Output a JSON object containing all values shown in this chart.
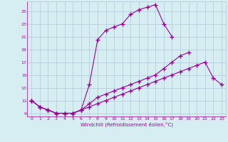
{
  "xlabel": "Windchill (Refroidissement éolien,°C)",
  "bg_color": "#d6eef2",
  "line_color": "#990099",
  "grid_color": "#b0c8d8",
  "xticks": [
    0,
    1,
    2,
    3,
    4,
    5,
    6,
    7,
    8,
    9,
    10,
    11,
    12,
    13,
    14,
    15,
    16,
    17,
    18,
    19,
    20,
    21,
    22,
    23
  ],
  "yticks": [
    9,
    11,
    13,
    15,
    17,
    19,
    21,
    23,
    25
  ],
  "curve1_x": [
    0,
    1,
    2,
    3,
    4,
    5,
    6,
    7,
    8,
    9,
    10,
    11,
    12,
    13,
    14,
    15,
    16,
    17
  ],
  "curve1_y": [
    11,
    10,
    9.5,
    9,
    9,
    9.0,
    9.5,
    13.5,
    20.5,
    22,
    22.5,
    23,
    24.5,
    25.2,
    25.6,
    26.0,
    23.0,
    21.0
  ],
  "curve2_x": [
    0,
    1,
    2,
    3,
    4,
    5,
    6,
    7,
    8,
    9,
    10,
    11,
    12,
    13,
    14,
    15,
    16,
    17,
    18,
    19,
    20,
    21,
    22,
    23
  ],
  "curve2_y": [
    11,
    10,
    9.5,
    9,
    9,
    9,
    9.5,
    10.5,
    11.5,
    12,
    12.5,
    13,
    13.5,
    14,
    14.5,
    15,
    16,
    17,
    18,
    18.5,
    null,
    null,
    null,
    null
  ],
  "curve3_x": [
    0,
    1,
    2,
    3,
    4,
    5,
    6,
    7,
    8,
    9,
    10,
    11,
    12,
    13,
    14,
    15,
    16,
    17,
    18,
    19,
    20,
    21,
    22,
    23
  ],
  "curve3_y": [
    11,
    10,
    9.5,
    9,
    9,
    9,
    9.5,
    10,
    10.5,
    11,
    11.5,
    12,
    12.5,
    13,
    13.5,
    14,
    14.5,
    15,
    15.5,
    16,
    16.5,
    17,
    14.5,
    13.5
  ]
}
